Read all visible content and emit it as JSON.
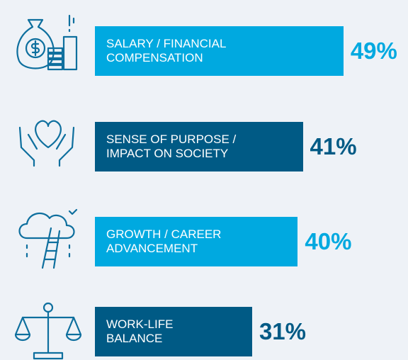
{
  "chart_data": {
    "type": "bar",
    "orientation": "horizontal",
    "categories": [
      "SALARY / FINANCIAL\nCOMPENSATION",
      "SENSE OF PURPOSE /\nIMPACT ON SOCIETY",
      "GROWTH / CAREER\nADVANCEMENT",
      "WORK-LIFE\nBALANCE"
    ],
    "values": [
      49,
      41,
      40,
      31
    ],
    "value_labels": [
      "49%",
      "41%",
      "40%",
      "31%"
    ],
    "colors": [
      "#00a9e0",
      "#005a85",
      "#00a9e0",
      "#005a85"
    ],
    "xlim": [
      0,
      100
    ]
  }
}
